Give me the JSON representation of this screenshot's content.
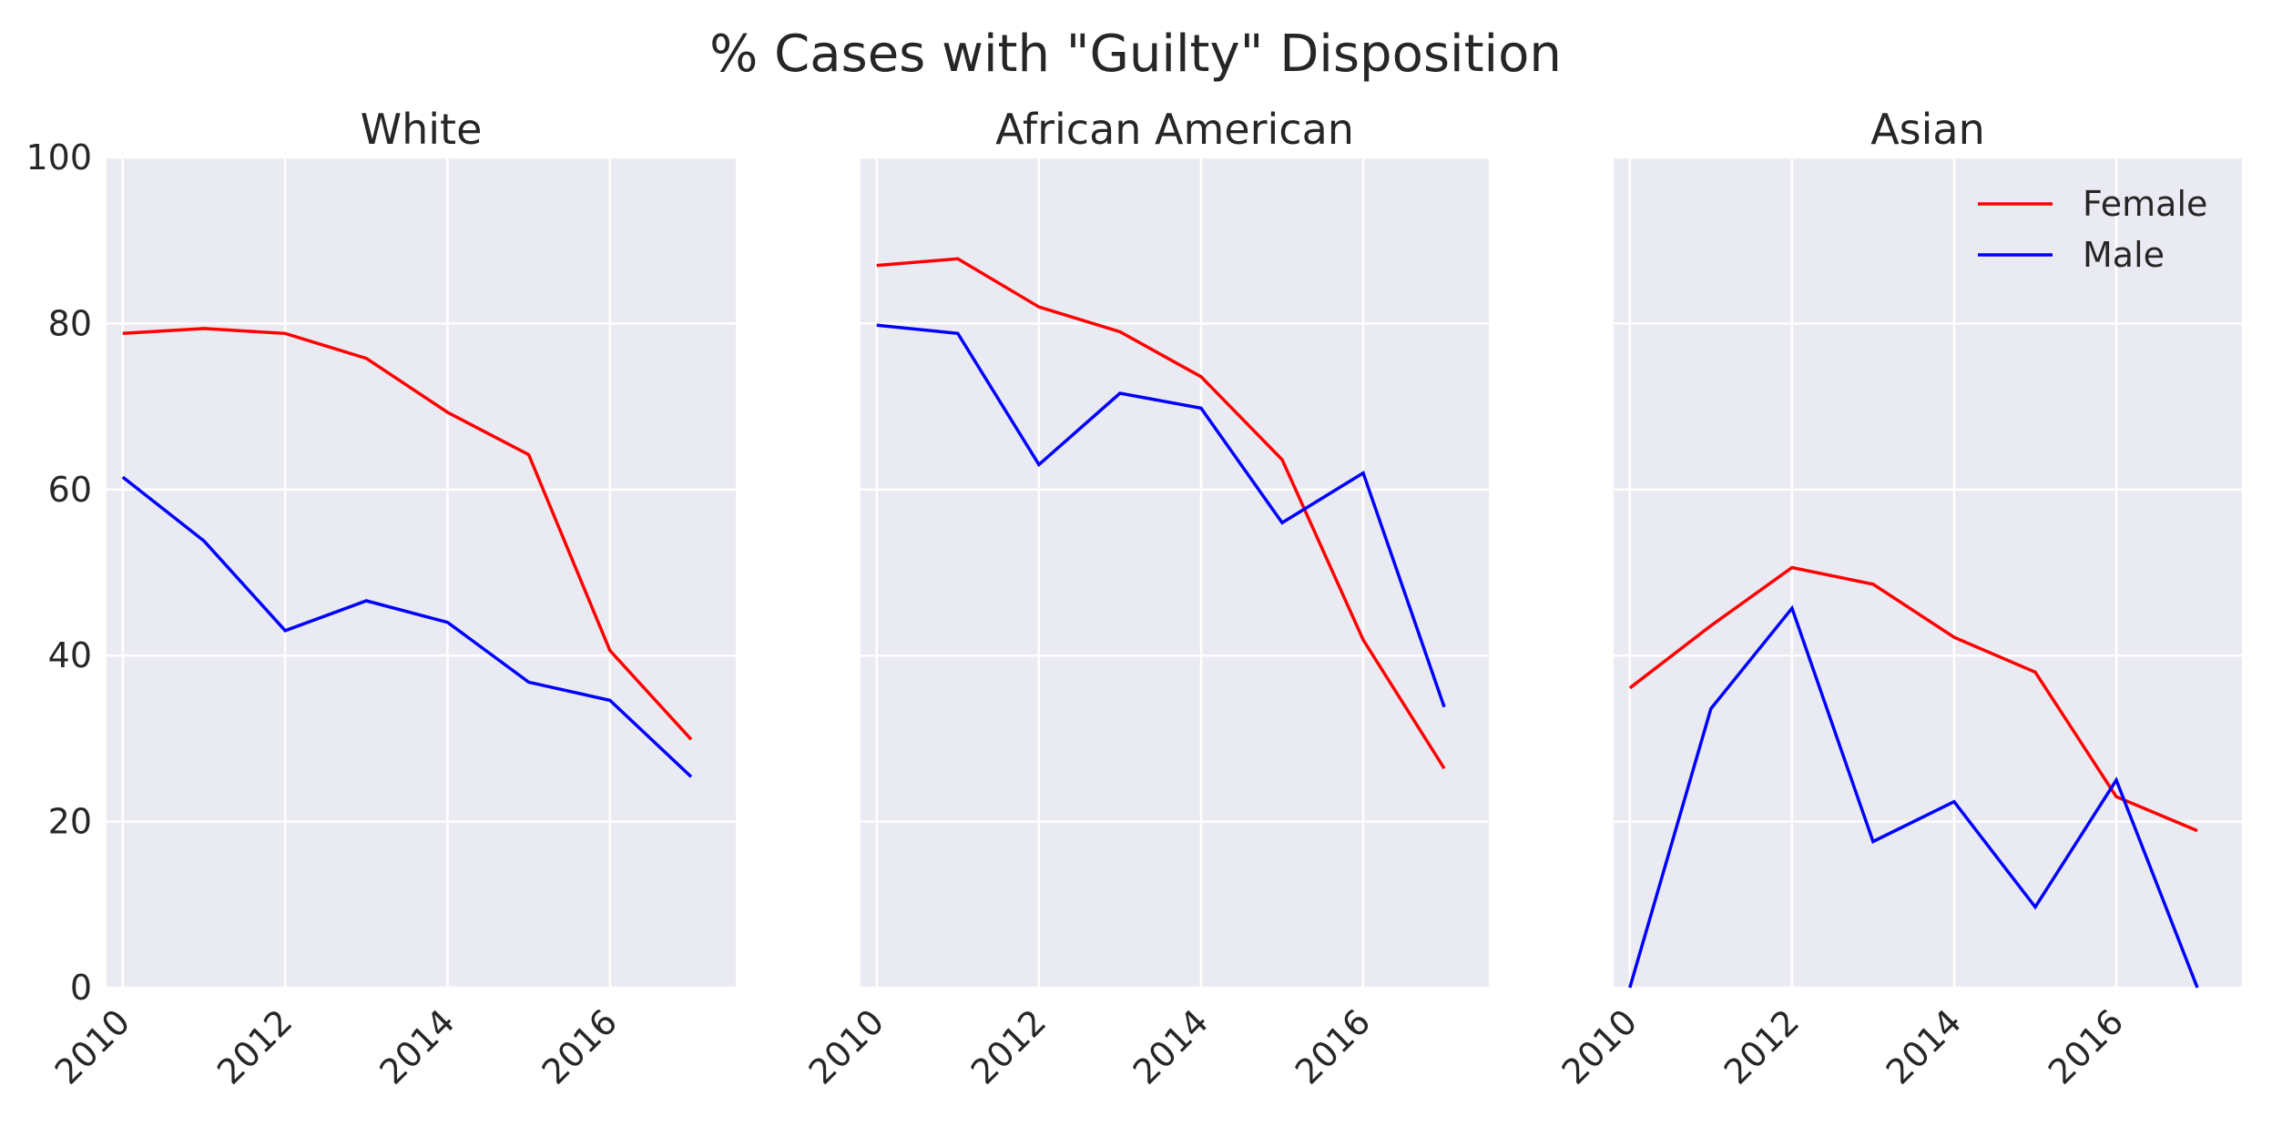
{
  "chart_data": {
    "type": "line",
    "title": "% Cases with \"Guilty\" Disposition",
    "x": [
      2010,
      2011,
      2012,
      2013,
      2014,
      2015,
      2016,
      2017
    ],
    "xticks": [
      2010,
      2012,
      2014,
      2016
    ],
    "xlim": [
      2009.8,
      2017.55
    ],
    "ylim": [
      0,
      100
    ],
    "yticks": [
      0,
      20,
      40,
      60,
      80,
      100
    ],
    "grid": true,
    "shared_y": true,
    "legend": {
      "location": "upper right",
      "panel": 2
    },
    "colors": {
      "Female": "#ff0000",
      "Male": "#0000ff",
      "axes_background": "#eaeaf2",
      "grid": "#ffffff"
    },
    "panels": [
      {
        "title": "White",
        "series": [
          {
            "name": "Female",
            "values": [
              78.8,
              79.4,
              78.8,
              75.8,
              69.3,
              64.2,
              40.6,
              29.9
            ]
          },
          {
            "name": "Male",
            "values": [
              61.5,
              53.8,
              43.0,
              46.6,
              44.0,
              36.8,
              34.6,
              25.4
            ]
          }
        ]
      },
      {
        "title": "African American",
        "series": [
          {
            "name": "Female",
            "values": [
              87.0,
              87.8,
              82.0,
              79.0,
              73.6,
              63.6,
              41.9,
              26.4
            ]
          },
          {
            "name": "Male",
            "values": [
              79.8,
              78.8,
              63.0,
              71.6,
              69.8,
              56.0,
              62.0,
              33.8
            ]
          }
        ]
      },
      {
        "title": "Asian",
        "series": [
          {
            "name": "Female",
            "values": [
              36.1,
              43.6,
              50.6,
              48.6,
              42.2,
              38.0,
              23.0,
              18.9
            ]
          },
          {
            "name": "Male",
            "values": [
              0.0,
              33.6,
              45.7,
              17.6,
              22.4,
              9.7,
              25.0,
              0.0
            ]
          }
        ]
      }
    ]
  }
}
